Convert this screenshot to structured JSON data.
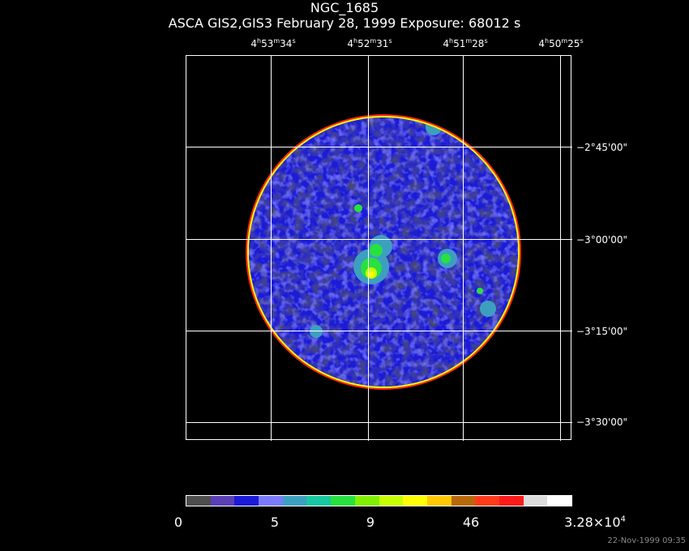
{
  "title": "NGC_1685",
  "subtitle": "ASCA GIS2,GIS3 February 28, 1999 Exposure: 68012 s",
  "ra_labels": [
    {
      "h": "4",
      "m": "53",
      "s": "34"
    },
    {
      "h": "4",
      "m": "52",
      "s": "31"
    },
    {
      "h": "4",
      "m": "51",
      "s": "28"
    },
    {
      "h": "4",
      "m": "50",
      "s": "25"
    }
  ],
  "dec_labels": [
    "−2°45'00\"",
    "−3°00'00\"",
    "−3°15'00\"",
    "−3°30'00\""
  ],
  "colorbar": {
    "colors": [
      "#4d4d4d",
      "#5a3fb5",
      "#1a1ad8",
      "#7a7aff",
      "#3d9fc0",
      "#18c8a0",
      "#28e040",
      "#80f000",
      "#c8ff00",
      "#ffff00",
      "#ffc800",
      "#b8680a",
      "#ff3a1a",
      "#ff1a1a",
      "#dcdcdc",
      "#ffffff"
    ],
    "tick_labels": [
      "0",
      "5",
      "9",
      "46"
    ],
    "max_label_base": "3.28×10",
    "max_label_exp": "4"
  },
  "timestamp": "22-Nov-1999 09:35"
}
